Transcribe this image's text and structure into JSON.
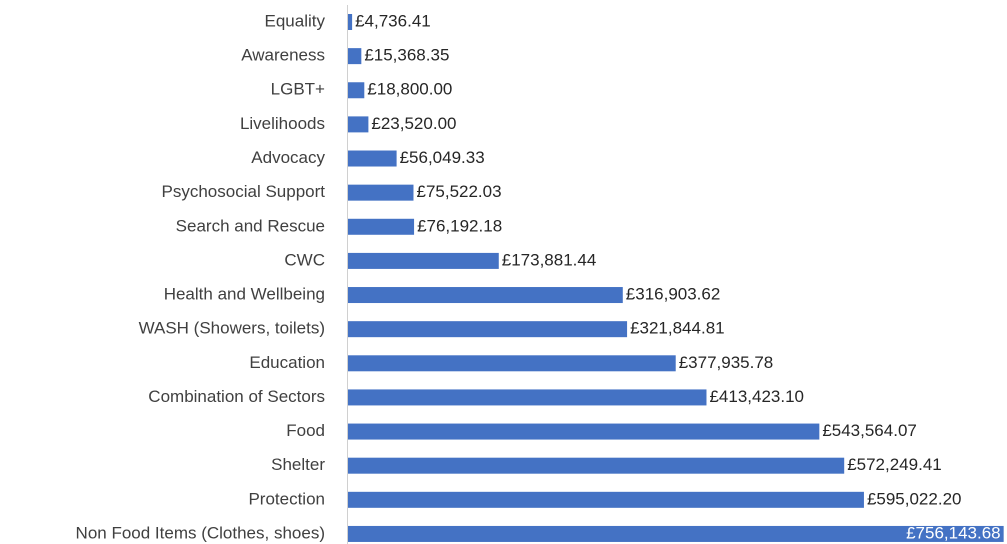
{
  "chart_data": {
    "type": "bar",
    "orientation": "horizontal",
    "categories": [
      "Equality",
      "Awareness",
      "LGBT+",
      "Livelihoods",
      "Advocacy",
      "Psychosocial Support",
      "Search and Rescue",
      "CWC",
      "Health and Wellbeing",
      "WASH (Showers, toilets)",
      "Education",
      "Combination of Sectors",
      "Food",
      "Shelter",
      "Protection",
      "Non Food Items (Clothes, shoes)"
    ],
    "values": [
      4736.41,
      15368.35,
      18800.0,
      23520.0,
      56049.33,
      75522.03,
      76192.18,
      173881.44,
      316903.62,
      321844.81,
      377935.78,
      413423.1,
      543564.07,
      572249.41,
      595022.2,
      756143.68
    ],
    "value_labels": [
      "£4,736.41",
      "£15,368.35",
      "£18,800.00",
      "£23,520.00",
      "£56,049.33",
      "£75,522.03",
      "£76,192.18",
      "£173,881.44",
      "£316,903.62",
      "£321,844.81",
      "£377,935.78",
      "£413,423.10",
      "£543,564.07",
      "£572,249.41",
      "£595,022.20",
      "£756,143.68"
    ],
    "color": "#4472c4",
    "xlim": [
      0,
      760000
    ]
  }
}
